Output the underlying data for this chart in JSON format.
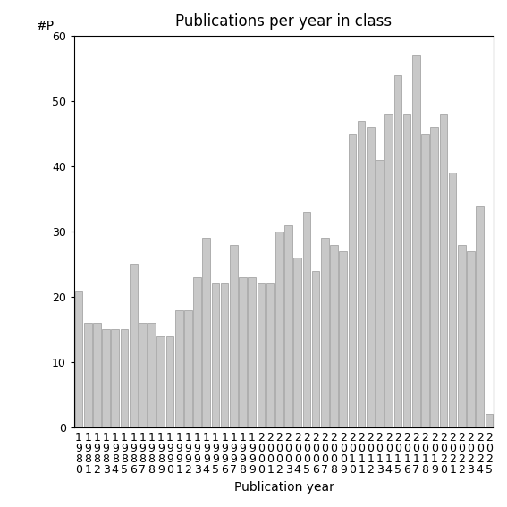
{
  "title": "Publications per year in class",
  "xlabel": "Publication year",
  "ylabel": "#P",
  "bar_color": "#c8c8c8",
  "bar_edgecolor": "#999999",
  "years": [
    1980,
    1981,
    1982,
    1983,
    1984,
    1985,
    1986,
    1987,
    1988,
    1989,
    1990,
    1991,
    1992,
    1993,
    1994,
    1995,
    1996,
    1997,
    1998,
    1999,
    2000,
    2001,
    2002,
    2003,
    2004,
    2005,
    2006,
    2007,
    2008,
    2009,
    2010,
    2011,
    2012,
    2013,
    2014,
    2015,
    2016,
    2017,
    2018,
    2019,
    2020,
    2021,
    2022,
    2023,
    2024,
    2025
  ],
  "values": [
    21,
    16,
    16,
    15,
    15,
    15,
    25,
    16,
    16,
    14,
    14,
    18,
    18,
    23,
    29,
    22,
    22,
    28,
    23,
    23,
    22,
    22,
    30,
    31,
    26,
    33,
    24,
    29,
    28,
    27,
    45,
    47,
    46,
    41,
    48,
    54,
    48,
    57,
    45,
    46,
    48,
    39,
    28,
    27,
    34,
    2
  ],
  "ylim": [
    0,
    60
  ],
  "yticks": [
    0,
    10,
    20,
    30,
    40,
    50,
    60
  ],
  "background_color": "#ffffff",
  "title_fontsize": 12,
  "label_fontsize": 10,
  "tick_fontsize": 9
}
